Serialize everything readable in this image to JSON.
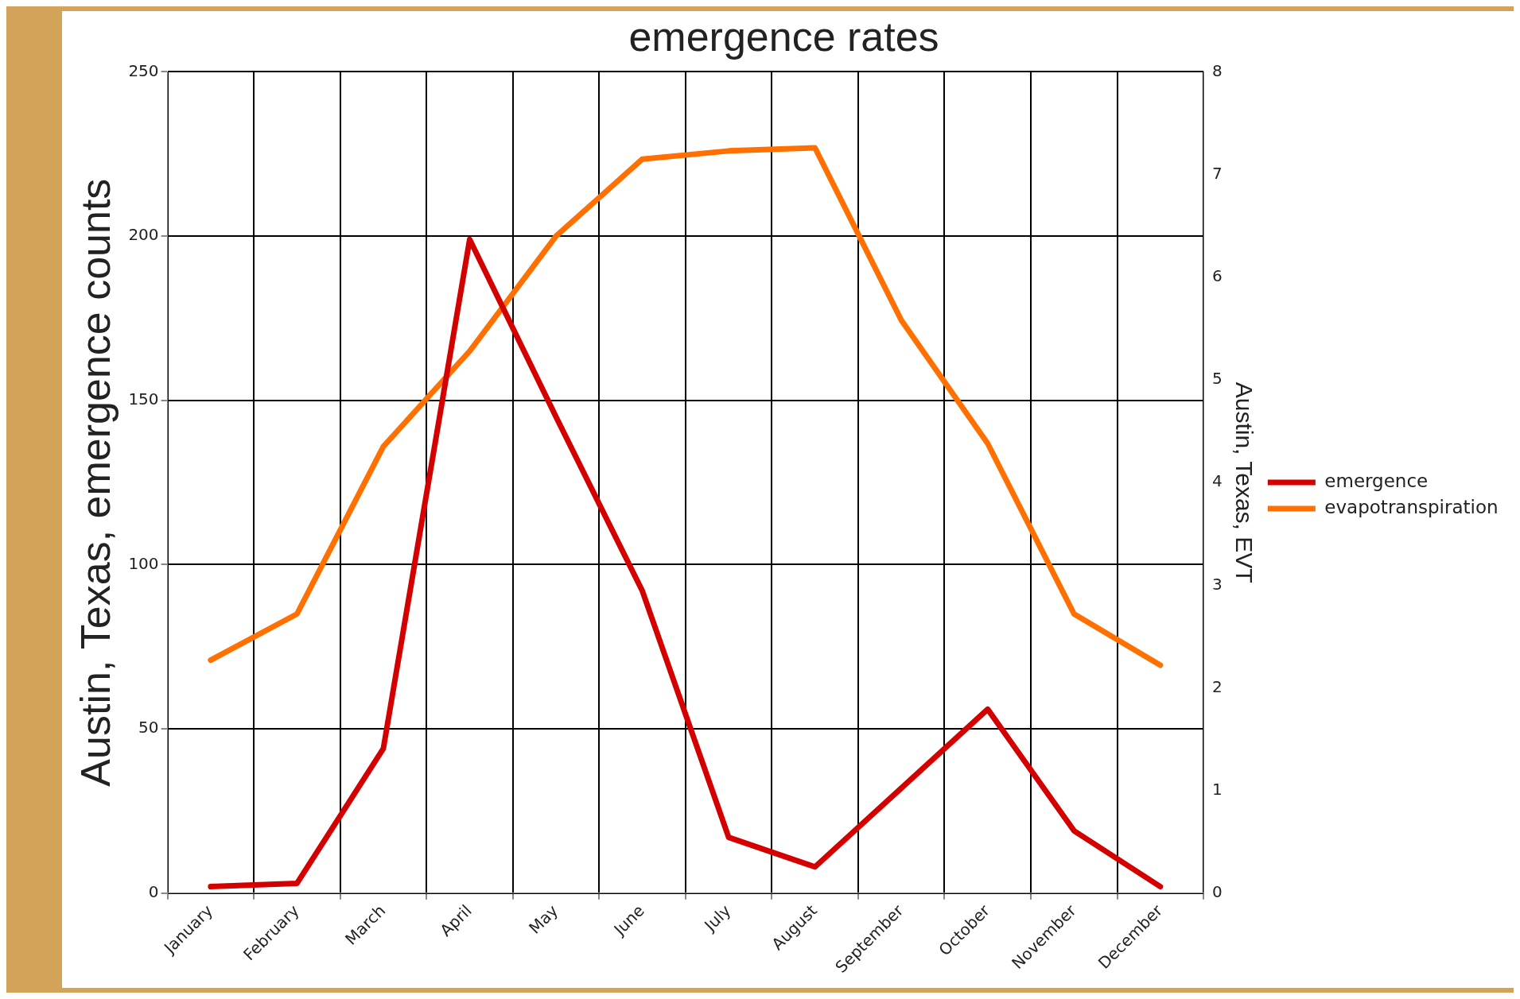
{
  "chart_data": {
    "type": "line",
    "title": "emergence rates",
    "ylabel": "Austin, Texas, emergence counts",
    "y2label": "Austin, Texas, EVT",
    "categories": [
      "January",
      "February",
      "March",
      "April",
      "May",
      "June",
      "July",
      "August",
      "September",
      "October",
      "November",
      "December"
    ],
    "series": [
      {
        "name": "emergence",
        "color": "#d40000",
        "values": [
          2,
          3,
          44,
          199,
          145,
          92,
          17,
          8,
          32,
          56,
          19,
          2
        ]
      },
      {
        "name": "evapotranspiration",
        "color": "#ff7000",
        "axis": "y2",
        "values": [
          2.27,
          2.72,
          4.35,
          5.28,
          6.4,
          7.15,
          7.23,
          7.26,
          5.58,
          4.38,
          2.72,
          2.22
        ]
      }
    ],
    "ylim": [
      0,
      250
    ],
    "yticks": [
      0,
      50,
      100,
      150,
      200,
      250
    ],
    "y2lim": [
      0,
      8
    ],
    "y2ticks": [
      0,
      1,
      2,
      3,
      4,
      5,
      6,
      7,
      8
    ],
    "grid": true,
    "legend": "right",
    "marker": "none",
    "line_style": "solid"
  }
}
